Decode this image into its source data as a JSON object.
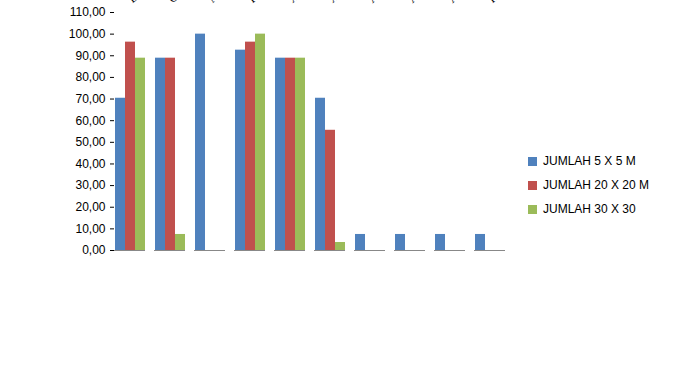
{
  "chart_data": {
    "type": "bar",
    "categories": [
      "Bruguiera gymnorrhiza",
      "Ceriops decandra",
      "Nypa fruticans",
      "Rhizophora apiculata",
      "Xylocarpus granatum",
      "X. moluccensis",
      "Acrostichum aureum",
      "A. Speciosum",
      "Acanthus ilicifolius",
      "Hibiscus tiliaceus"
    ],
    "series": [
      {
        "name": "JUMLAH 5 X 5 M",
        "color": "#4f81bd",
        "values": [
          70.37,
          88.89,
          100,
          92.59,
          88.89,
          70.37,
          7.41,
          7.41,
          7.41,
          7.41
        ]
      },
      {
        "name": "JUMLAH 20 X 20 M",
        "color": "#c0504d",
        "values": [
          96.3,
          88.89,
          0,
          96.3,
          88.89,
          55.56,
          0,
          0,
          0,
          0
        ]
      },
      {
        "name": "JUMLAH 30 X 30",
        "color": "#9bbb59",
        "values": [
          88.89,
          7.41,
          0,
          100,
          88.89,
          3.7,
          0,
          0,
          0,
          0
        ]
      }
    ],
    "ylim": [
      0,
      110
    ],
    "yticks": [
      {
        "value": 0,
        "label": "0,00"
      },
      {
        "value": 10,
        "label": "10,00"
      },
      {
        "value": 20,
        "label": "20,00"
      },
      {
        "value": 30,
        "label": "30,00"
      },
      {
        "value": 40,
        "label": "40,00"
      },
      {
        "value": 50,
        "label": "50,00"
      },
      {
        "value": 60,
        "label": "60,00"
      },
      {
        "value": 70,
        "label": "70,00"
      },
      {
        "value": 80,
        "label": "80,00"
      },
      {
        "value": 90,
        "label": "90,00"
      },
      {
        "value": 100,
        "label": "100,00"
      },
      {
        "value": 110,
        "label": "110,00"
      }
    ],
    "grid": false,
    "legend": "right"
  }
}
